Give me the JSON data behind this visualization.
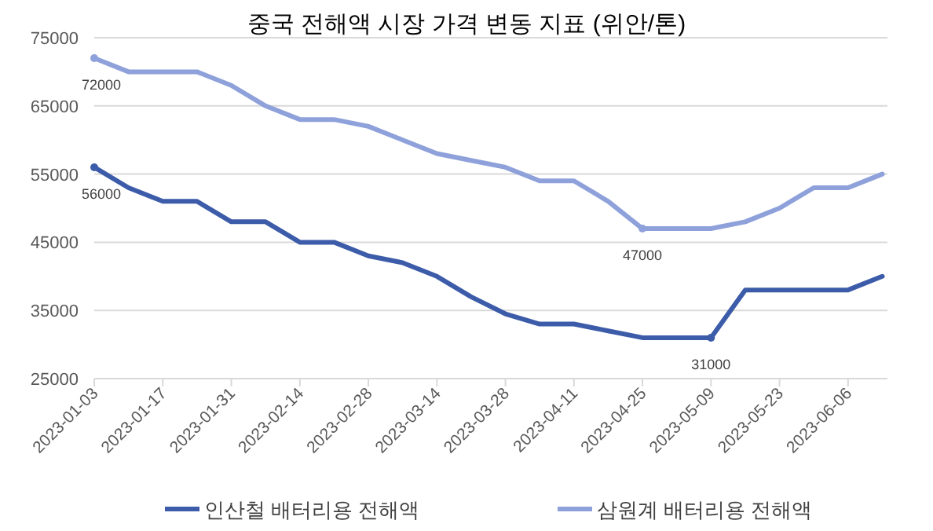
{
  "chart_data": {
    "type": "line",
    "title": "중국 전해액 시장 가격 변동 지표 (위안/톤)",
    "categories": [
      "2023-01-03",
      null,
      "2023-01-17",
      null,
      "2023-01-31",
      null,
      "2023-02-14",
      null,
      "2023-02-28",
      null,
      "2023-03-14",
      null,
      "2023-03-28",
      null,
      "2023-04-11",
      null,
      "2023-04-25",
      null,
      "2023-05-09",
      null,
      "2023-05-23",
      null,
      "2023-06-06",
      null
    ],
    "series": [
      {
        "name": "인산철 배터리용 전해액",
        "color": "#3c5ca9",
        "values": [
          56000,
          53000,
          51000,
          51000,
          48000,
          48000,
          45000,
          45000,
          43000,
          42000,
          40000,
          37000,
          34500,
          33000,
          33000,
          32000,
          31000,
          31000,
          31000,
          38000,
          38000,
          38000,
          38000,
          40000
        ]
      },
      {
        "name": "삼원계 배터리용 전해액",
        "color": "#8ea1da",
        "values": [
          72000,
          70000,
          70000,
          70000,
          68000,
          65000,
          63000,
          63000,
          62000,
          60000,
          58000,
          57000,
          56000,
          54000,
          54000,
          51000,
          47000,
          47000,
          47000,
          48000,
          50000,
          53000,
          53000,
          55000
        ]
      }
    ],
    "ylim": [
      25000,
      75000
    ],
    "yticks": [
      25000,
      35000,
      45000,
      55000,
      65000,
      75000
    ],
    "grid": "y",
    "legend": "bottom",
    "annotations": [
      {
        "text": "72000",
        "x": "2023-01-03",
        "y": 72000
      },
      {
        "text": "56000",
        "x": "2023-01-03",
        "y": 56000
      },
      {
        "text": "47000",
        "x": "2023-04-25",
        "y": 47000
      },
      {
        "text": "31000",
        "x": "2023-05-09",
        "y": 31000
      }
    ]
  }
}
